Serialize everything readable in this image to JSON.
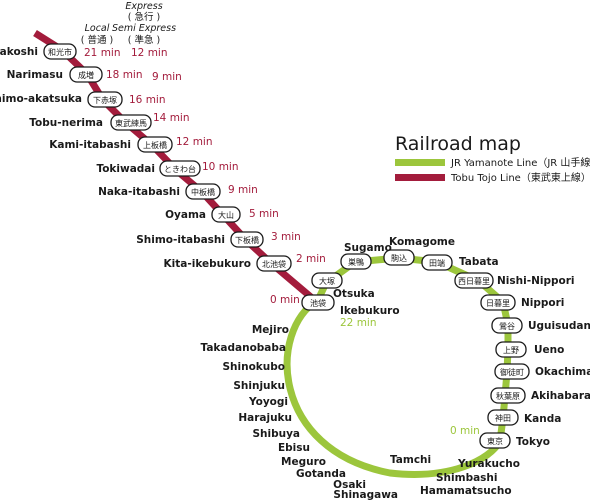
{
  "title": "Railroad map",
  "colors": {
    "yamanote": "#9cc63c",
    "tobu": "#a31c3c"
  },
  "legend": [
    {
      "line": "yamanote",
      "label": "JR Yamanote Line（JR 山手線）"
    },
    {
      "line": "tobu",
      "label": "Tobu Tojo Line（東武東上線）"
    }
  ],
  "headers": {
    "local_en": "Local",
    "local_ja": "( 普通 )",
    "express_en": "Express",
    "express_ja": "( 急行 )",
    "semi_en": "Semi Express",
    "semi_ja": "( 準急 )"
  },
  "tobu": [
    {
      "en": "Wakoshi",
      "ja": "和光市",
      "local": "21 min",
      "express": "12 min"
    },
    {
      "en": "Narimasu",
      "ja": "成増",
      "local": "18 min",
      "express": "9 min"
    },
    {
      "en": "Shimo-akatsuka",
      "ja": "下赤塚",
      "local": "16 min"
    },
    {
      "en": "Tobu-nerima",
      "ja": "東武練馬",
      "local": "14 min"
    },
    {
      "en": "Kami-itabashi",
      "ja": "上板橋",
      "local": "12 min"
    },
    {
      "en": "Tokiwadai",
      "ja": "ときわ台",
      "local": "10 min"
    },
    {
      "en": "Naka-itabashi",
      "ja": "中板橋",
      "local": "9 min"
    },
    {
      "en": "Oyama",
      "ja": "大山",
      "local": "5 min"
    },
    {
      "en": "Shimo-itabashi",
      "ja": "下板橋",
      "local": "3 min"
    },
    {
      "en": "Kita-ikebukuro",
      "ja": "北池袋",
      "local": "2 min"
    },
    {
      "en": "Ikebukuro",
      "ja": "池袋",
      "local": "0 min",
      "yamanote": "22 min"
    }
  ],
  "yamanote_boxed": [
    {
      "en": "Otsuka",
      "ja": "大塚"
    },
    {
      "en": "Sugamo",
      "ja": "巣鴨"
    },
    {
      "en": "Komagome",
      "ja": "駒込"
    },
    {
      "en": "Tabata",
      "ja": "田端"
    },
    {
      "en": "Nishi-Nippori",
      "ja": "西日暮里"
    },
    {
      "en": "Nippori",
      "ja": "日暮里"
    },
    {
      "en": "Uguisudani",
      "ja": "鶯谷"
    },
    {
      "en": "Ueno",
      "ja": "上野"
    },
    {
      "en": "Okachimachi",
      "ja": "御徒町"
    },
    {
      "en": "Akihabara",
      "ja": "秋葉原"
    },
    {
      "en": "Kanda",
      "ja": "神田"
    },
    {
      "en": "Tokyo",
      "ja": "東京",
      "yamanote": "0 min"
    }
  ],
  "yamanote_other": [
    "Mejiro",
    "Takadanobaba",
    "Shinokubo",
    "Shinjuku",
    "Yoyogi",
    "Harajuku",
    "Shibuya",
    "Ebisu",
    "Meguro",
    "Gotanda",
    "Osaki",
    "Shinagawa",
    "Tamchi",
    "Hamamatsucho",
    "Shimbashi",
    "Yurakucho"
  ]
}
